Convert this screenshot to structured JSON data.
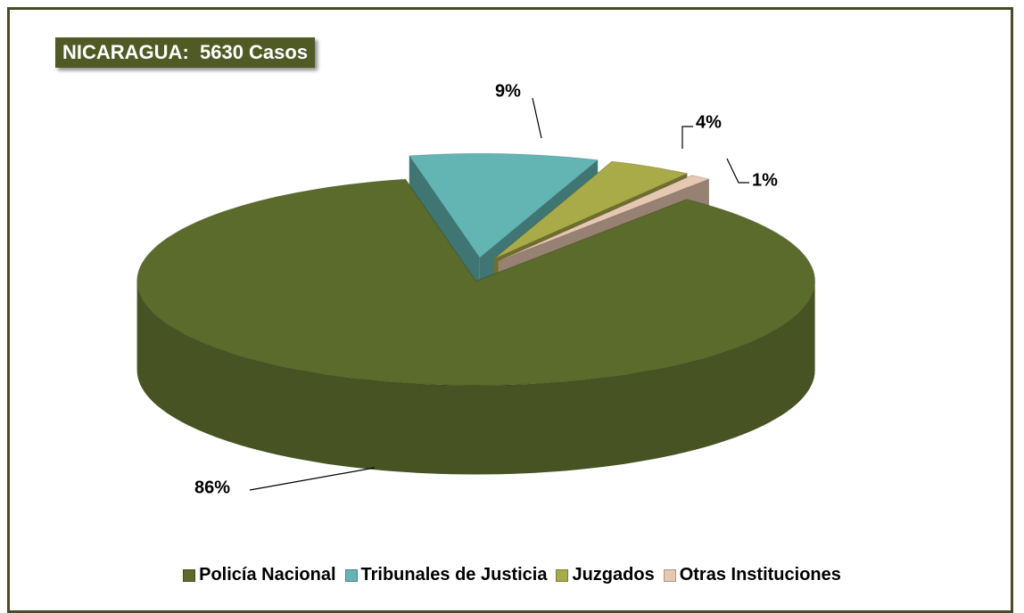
{
  "chart_data": {
    "type": "pie",
    "title": "NICARAGUA:  5630 Casos",
    "categories": [
      "Policía Nacional",
      "Tribunales de Justicia",
      "Juzgados",
      "Otras Instituciones"
    ],
    "values": [
      86,
      9,
      4,
      1
    ],
    "value_labels": [
      "86%",
      "9%",
      "4%",
      "1%"
    ],
    "colors": [
      "#5b6b2c",
      "#62b5b3",
      "#a9aa48",
      "#e6c7b1"
    ],
    "legend": "bottom"
  }
}
